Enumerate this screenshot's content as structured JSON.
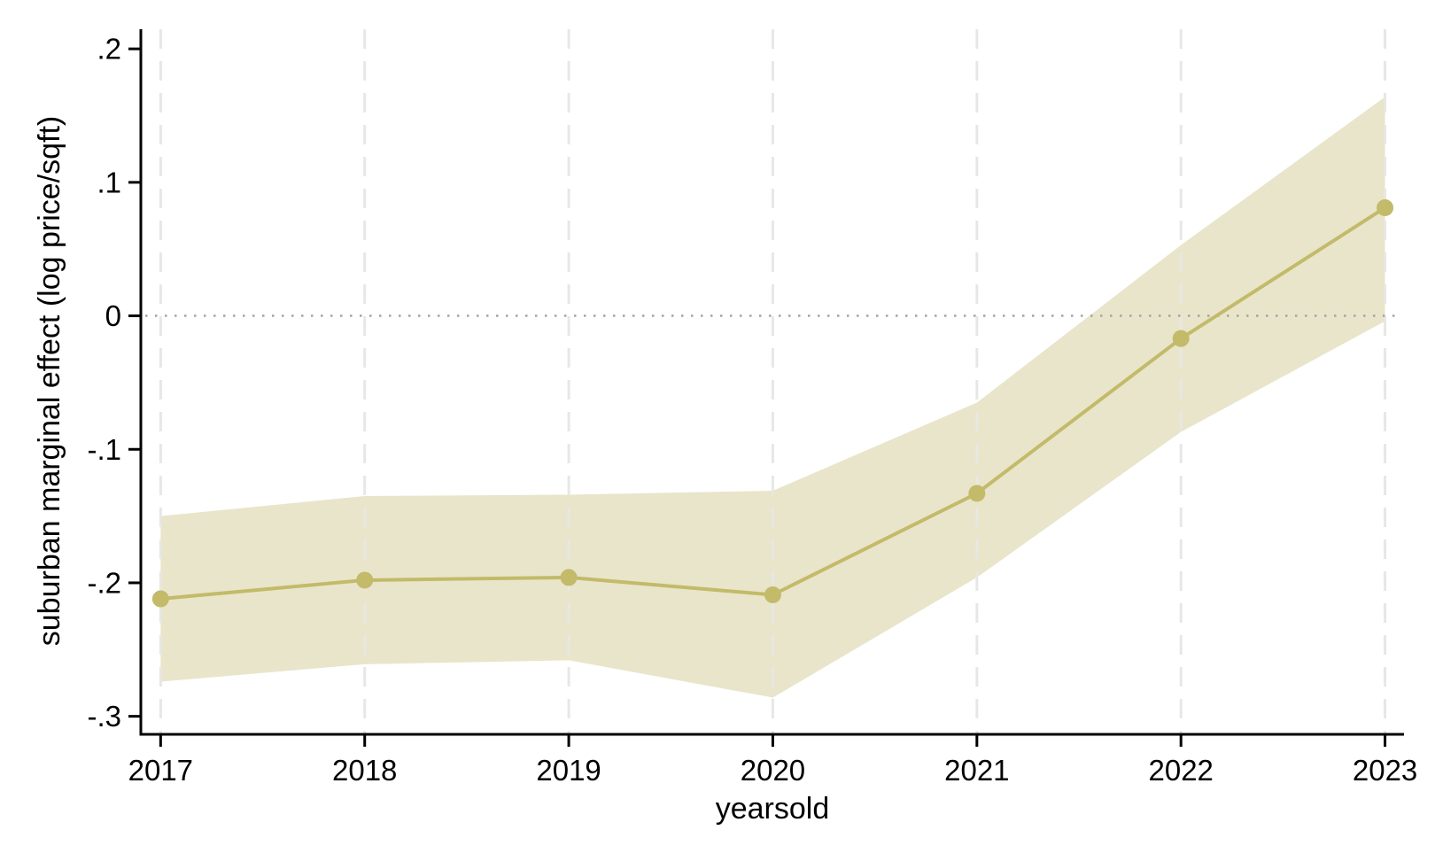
{
  "chart_data": {
    "type": "line",
    "title": "",
    "xlabel": "yearsold",
    "ylabel": "suburban marginal effect (log price/sqft)",
    "x": [
      2017,
      2018,
      2019,
      2020,
      2021,
      2022,
      2023
    ],
    "x_tick_labels": [
      "2017",
      "2018",
      "2019",
      "2020",
      "2021",
      "2022",
      "2023"
    ],
    "series": [
      {
        "name": "suburban marginal effect",
        "values": [
          -0.212,
          -0.198,
          -0.196,
          -0.209,
          -0.133,
          -0.017,
          0.081
        ]
      }
    ],
    "ci_band": {
      "upper": [
        -0.15,
        -0.135,
        -0.134,
        -0.131,
        -0.065,
        0.053,
        0.164
      ],
      "lower": [
        -0.274,
        -0.261,
        -0.258,
        -0.286,
        -0.196,
        -0.087,
        -0.004
      ]
    },
    "y_ticks": [
      {
        "label": ".2",
        "value": 0.2
      },
      {
        "label": ".1",
        "value": 0.1
      },
      {
        "label": "0",
        "value": 0
      },
      {
        "label": "-.1",
        "value": -0.1
      },
      {
        "label": "-.2",
        "value": -0.2
      },
      {
        "label": "-.3",
        "value": -0.3
      }
    ],
    "xlim": [
      2016.903,
      2023.093
    ],
    "ylim": [
      -0.3135,
      0.2147
    ],
    "grid": "vertical-dashed-per-year",
    "zero_reference_line": true,
    "legend": "none",
    "colors": {
      "line": "#c3ba6a",
      "marker": "#c3ba6a",
      "band": "#e9e5ca",
      "grid_line": "#e7e7e4",
      "zero_line": "#a3a3a3",
      "axis": "#000000",
      "text": "#000000",
      "background": "#ffffff"
    }
  }
}
